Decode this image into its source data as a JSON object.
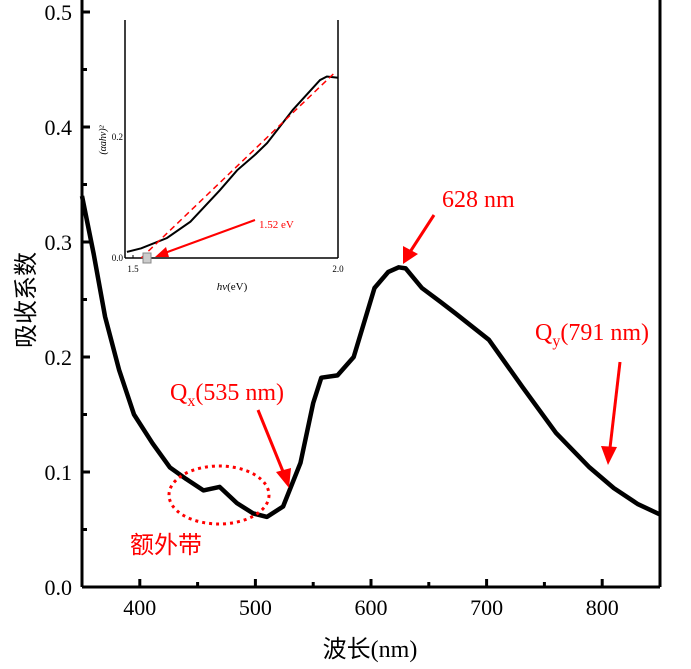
{
  "chart_data": [
    {
      "type": "line",
      "xlabel": "波长(nm)",
      "ylabel": "吸收系数",
      "xlim": [
        350,
        850
      ],
      "ylim": [
        0.0,
        0.5
      ],
      "xticks": [
        "400",
        "500",
        "600",
        "700",
        "800"
      ],
      "yticks": [
        "0.0",
        "0.1",
        "0.2",
        "0.3",
        "0.4",
        "0.5"
      ],
      "grid": false,
      "series": [
        {
          "color": "#000000",
          "x": [
            350,
            360,
            370,
            382,
            395,
            411,
            426,
            440,
            455,
            469,
            484,
            498,
            510,
            524,
            539,
            550,
            557,
            571,
            585,
            603,
            615,
            624,
            630,
            644,
            660,
            673,
            702,
            731,
            760,
            789,
            810,
            831,
            850
          ],
          "y": [
            0.34,
            0.29,
            0.235,
            0.189,
            0.15,
            0.125,
            0.104,
            0.094,
            0.084,
            0.087,
            0.073,
            0.064,
            0.061,
            0.07,
            0.108,
            0.16,
            0.182,
            0.184,
            0.2,
            0.26,
            0.274,
            0.278,
            0.277,
            0.26,
            0.248,
            0.238,
            0.215,
            0.174,
            0.134,
            0.104,
            0.086,
            0.072,
            0.063
          ]
        }
      ],
      "annotations": [
        {
          "text": "628 nm",
          "x": 628,
          "y": 0.278,
          "color": "#ff0000"
        },
        {
          "text": "Q",
          "sub": "x",
          "rest": "(535 nm)",
          "x": 535,
          "y": 0.085,
          "color": "#ff0000"
        },
        {
          "text": "Q",
          "sub": "y",
          "rest": "(791 nm)",
          "x": 791,
          "y": 0.104,
          "color": "#ff0000"
        },
        {
          "text": "额外带",
          "color": "#ff0000"
        }
      ]
    },
    {
      "type": "line",
      "inset": true,
      "xlabel_italic": "hv",
      "xlabel_rest": "(eV)",
      "ylabel": "(αahv)²",
      "xlim": [
        1.485,
        2.0
      ],
      "ylim": [
        0.0,
        0.4
      ],
      "xticks": [
        "1.5",
        "2.0"
      ],
      "yticks": [
        "0.0",
        "0.2"
      ],
      "series": [
        {
          "color": "#000000",
          "x": [
            1.485,
            1.52,
            1.583,
            1.64,
            1.712,
            1.754,
            1.8,
            1.827,
            1.89,
            1.956,
            1.973,
            2.0
          ],
          "y": [
            0.01,
            0.016,
            0.033,
            0.06,
            0.112,
            0.145,
            0.172,
            0.19,
            0.245,
            0.294,
            0.3,
            0.298
          ]
        },
        {
          "color": "#ff0000",
          "style": "dashed",
          "x": [
            1.52,
            1.993
          ],
          "y": [
            0.0,
            0.307
          ]
        }
      ],
      "annotations": [
        {
          "text": "1.52 eV",
          "x": 1.52,
          "y": 0.0,
          "color": "#ff0000"
        }
      ]
    }
  ]
}
